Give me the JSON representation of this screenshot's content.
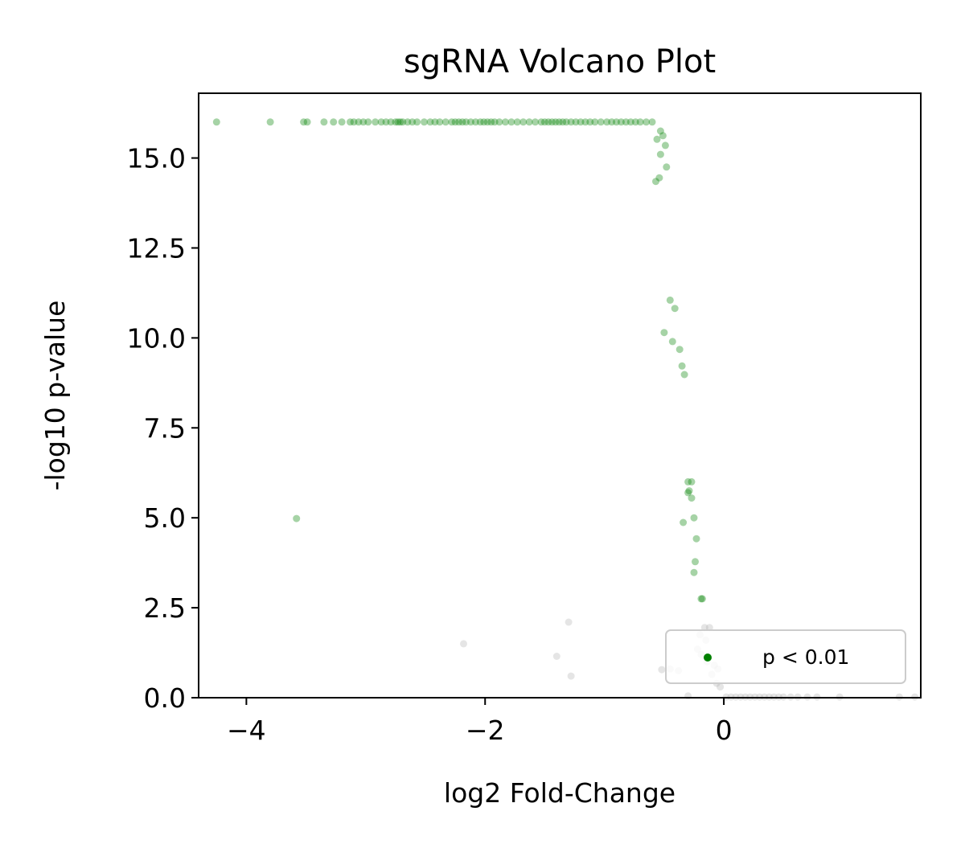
{
  "chart_data": {
    "type": "scatter",
    "title": "sgRNA Volcano Plot",
    "xlabel": "log2 Fold-Change",
    "ylabel": "-log10 p-value",
    "xlim": [
      -4.4,
      1.65
    ],
    "ylim": [
      0,
      16.8
    ],
    "x_ticks": [
      -4,
      -2,
      0
    ],
    "x_tick_labels": [
      "−4",
      "−2",
      "0"
    ],
    "y_ticks": [
      0,
      2.5,
      5,
      7.5,
      10,
      12.5,
      15
    ],
    "y_tick_labels": [
      "0.0",
      "2.5",
      "5.0",
      "7.5",
      "10.0",
      "12.5",
      "15.0"
    ],
    "grid": false,
    "legend_position": "lower-right",
    "series": [
      {
        "name": "p < 0.01",
        "color": "#008000",
        "points": [
          [
            -4.25,
            16.0
          ],
          [
            -3.8,
            16.0
          ],
          [
            -3.52,
            16.0
          ],
          [
            -3.49,
            16.0
          ],
          [
            -3.35,
            16.0
          ],
          [
            -3.27,
            16.0
          ],
          [
            -3.2,
            16.0
          ],
          [
            -3.13,
            16.0
          ],
          [
            -3.1,
            16.0
          ],
          [
            -3.06,
            16.0
          ],
          [
            -3.02,
            16.0
          ],
          [
            -2.98,
            16.0
          ],
          [
            -2.92,
            16.0
          ],
          [
            -2.87,
            16.0
          ],
          [
            -2.83,
            16.0
          ],
          [
            -2.79,
            16.0
          ],
          [
            -2.75,
            16.0
          ],
          [
            -2.73,
            16.0
          ],
          [
            -2.71,
            16.0
          ],
          [
            -2.69,
            16.0
          ],
          [
            -2.65,
            16.0
          ],
          [
            -2.61,
            16.0
          ],
          [
            -2.57,
            16.0
          ],
          [
            -2.51,
            16.0
          ],
          [
            -2.46,
            16.0
          ],
          [
            -2.42,
            16.0
          ],
          [
            -2.38,
            16.0
          ],
          [
            -2.33,
            16.0
          ],
          [
            -2.28,
            16.0
          ],
          [
            -2.25,
            16.0
          ],
          [
            -2.22,
            16.0
          ],
          [
            -2.19,
            16.0
          ],
          [
            -2.16,
            16.0
          ],
          [
            -2.12,
            16.0
          ],
          [
            -2.08,
            16.0
          ],
          [
            -2.04,
            16.0
          ],
          [
            -2.01,
            16.0
          ],
          [
            -1.98,
            16.0
          ],
          [
            -1.95,
            16.0
          ],
          [
            -1.92,
            16.0
          ],
          [
            -1.88,
            16.0
          ],
          [
            -1.83,
            16.0
          ],
          [
            -1.78,
            16.0
          ],
          [
            -1.73,
            16.0
          ],
          [
            -1.68,
            16.0
          ],
          [
            -1.63,
            16.0
          ],
          [
            -1.58,
            16.0
          ],
          [
            -1.53,
            16.0
          ],
          [
            -1.5,
            16.0
          ],
          [
            -1.47,
            16.0
          ],
          [
            -1.44,
            16.0
          ],
          [
            -1.41,
            16.0
          ],
          [
            -1.38,
            16.0
          ],
          [
            -1.35,
            16.0
          ],
          [
            -1.32,
            16.0
          ],
          [
            -1.28,
            16.0
          ],
          [
            -1.24,
            16.0
          ],
          [
            -1.2,
            16.0
          ],
          [
            -1.16,
            16.0
          ],
          [
            -1.12,
            16.0
          ],
          [
            -1.08,
            16.0
          ],
          [
            -1.03,
            16.0
          ],
          [
            -0.98,
            16.0
          ],
          [
            -0.94,
            16.0
          ],
          [
            -0.9,
            16.0
          ],
          [
            -0.86,
            16.0
          ],
          [
            -0.82,
            16.0
          ],
          [
            -0.78,
            16.0
          ],
          [
            -0.74,
            16.0
          ],
          [
            -0.7,
            16.0
          ],
          [
            -0.65,
            16.0
          ],
          [
            -0.6,
            16.0
          ],
          [
            -0.53,
            15.75
          ],
          [
            -0.51,
            15.62
          ],
          [
            -0.56,
            15.52
          ],
          [
            -0.49,
            15.35
          ],
          [
            -0.53,
            15.1
          ],
          [
            -0.48,
            14.75
          ],
          [
            -0.54,
            14.45
          ],
          [
            -0.57,
            14.35
          ],
          [
            -0.45,
            11.05
          ],
          [
            -0.41,
            10.82
          ],
          [
            -0.5,
            10.15
          ],
          [
            -0.43,
            9.9
          ],
          [
            -0.37,
            9.68
          ],
          [
            -0.35,
            9.22
          ],
          [
            -0.33,
            8.98
          ],
          [
            -0.3,
            6.0
          ],
          [
            -0.27,
            6.0
          ],
          [
            -0.29,
            5.75
          ],
          [
            -0.3,
            5.7
          ],
          [
            -0.27,
            5.55
          ],
          [
            -0.25,
            5.0
          ],
          [
            -0.34,
            4.87
          ],
          [
            -0.23,
            4.42
          ],
          [
            -0.24,
            3.78
          ],
          [
            -0.25,
            3.48
          ],
          [
            -0.19,
            2.75
          ],
          [
            -0.18,
            2.75
          ],
          [
            -3.58,
            4.98
          ]
        ]
      },
      {
        "name": "",
        "color": "#aaaaaa",
        "points": [
          [
            -2.18,
            1.5
          ],
          [
            -1.3,
            2.1
          ],
          [
            -1.4,
            1.15
          ],
          [
            -1.28,
            0.6
          ],
          [
            -0.16,
            1.95
          ],
          [
            -0.12,
            1.95
          ],
          [
            -0.2,
            1.75
          ],
          [
            -0.15,
            1.6
          ],
          [
            -0.22,
            1.35
          ],
          [
            -0.19,
            1.2
          ],
          [
            -0.14,
            1.0
          ],
          [
            -0.08,
            0.9
          ],
          [
            -0.05,
            0.8
          ],
          [
            -0.1,
            0.65
          ],
          [
            -0.45,
            0.8
          ],
          [
            -0.52,
            0.78
          ],
          [
            -0.38,
            0.75
          ],
          [
            -0.06,
            0.4
          ],
          [
            -0.03,
            0.3
          ],
          [
            -0.3,
            0.05
          ],
          [
            0.02,
            0.02
          ],
          [
            0.06,
            0.02
          ],
          [
            0.1,
            0.02
          ],
          [
            0.14,
            0.02
          ],
          [
            0.18,
            0.02
          ],
          [
            0.22,
            0.02
          ],
          [
            0.26,
            0.02
          ],
          [
            0.3,
            0.02
          ],
          [
            0.34,
            0.02
          ],
          [
            0.38,
            0.02
          ],
          [
            0.42,
            0.02
          ],
          [
            0.46,
            0.02
          ],
          [
            0.5,
            0.02
          ],
          [
            0.56,
            0.02
          ],
          [
            0.62,
            0.02
          ],
          [
            0.7,
            0.02
          ],
          [
            0.78,
            0.02
          ],
          [
            0.97,
            0.02
          ],
          [
            1.47,
            0.02
          ],
          [
            1.6,
            0.02
          ]
        ]
      }
    ],
    "legend": [
      {
        "label": "p < 0.01",
        "color": "#008000"
      }
    ]
  }
}
